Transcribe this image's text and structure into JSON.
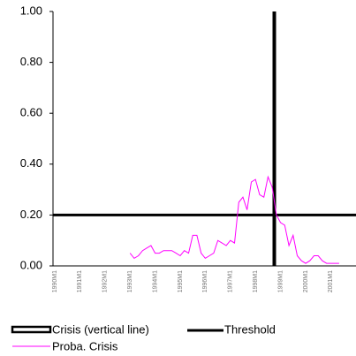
{
  "chart_data": {
    "type": "line",
    "xticks": [
      "1990M1",
      "1991M1",
      "1992M1",
      "1993M1",
      "1994M1",
      "1995M1",
      "1996M1",
      "1997M1",
      "1998M1",
      "1999M1",
      "2000M1",
      "2001M1"
    ],
    "ylim": [
      0,
      1
    ],
    "yticks": [
      {
        "value": 0,
        "label": "0.00"
      },
      {
        "value": 0.2,
        "label": "0.20"
      },
      {
        "value": 0.4,
        "label": "0.40"
      },
      {
        "value": 0.6,
        "label": "0.60"
      },
      {
        "value": 0.8,
        "label": "0.80"
      },
      {
        "value": 1,
        "label": "1.00"
      }
    ],
    "crisis": {
      "name": "Crisis (vertical line)",
      "x": "1998M10",
      "color": "#000000"
    },
    "threshold": {
      "name": "Threshold",
      "value": 0.2,
      "color": "#000000"
    },
    "x": [
      "1993M1",
      "1993M3",
      "1993M5",
      "1993M7",
      "1993M9",
      "1993M11",
      "1994M1",
      "1994M3",
      "1994M5",
      "1994M7",
      "1994M9",
      "1994M11",
      "1995M1",
      "1995M3",
      "1995M5",
      "1995M7",
      "1995M9",
      "1995M11",
      "1996M1",
      "1996M3",
      "1996M5",
      "1996M7",
      "1996M9",
      "1996M11",
      "1997M1",
      "1997M3",
      "1997M5",
      "1997M7",
      "1997M9",
      "1997M11",
      "1998M1",
      "1998M3",
      "1998M5",
      "1998M7",
      "1998M9",
      "1998M11",
      "1999M1",
      "1999M3",
      "1999M5",
      "1999M7",
      "1999M9",
      "1999M11",
      "2000M1",
      "2000M3",
      "2000M5",
      "2000M7",
      "2000M9",
      "2000M11",
      "2001M1",
      "2001M3",
      "2001M5"
    ],
    "series": [
      {
        "name": "Proba. Crisis",
        "color": "#ff00ff",
        "values": [
          0.05,
          0.03,
          0.04,
          0.06,
          0.07,
          0.08,
          0.05,
          0.05,
          0.06,
          0.06,
          0.06,
          0.05,
          0.04,
          0.06,
          0.05,
          0.12,
          0.12,
          0.05,
          0.03,
          0.04,
          0.05,
          0.1,
          0.09,
          0.08,
          0.1,
          0.09,
          0.25,
          0.27,
          0.22,
          0.33,
          0.34,
          0.28,
          0.27,
          0.35,
          0.31,
          0.2,
          0.17,
          0.16,
          0.08,
          0.12,
          0.04,
          0.02,
          0.01,
          0.02,
          0.04,
          0.04,
          0.02,
          0.01,
          0.01,
          0.01,
          0.01
        ]
      }
    ]
  }
}
